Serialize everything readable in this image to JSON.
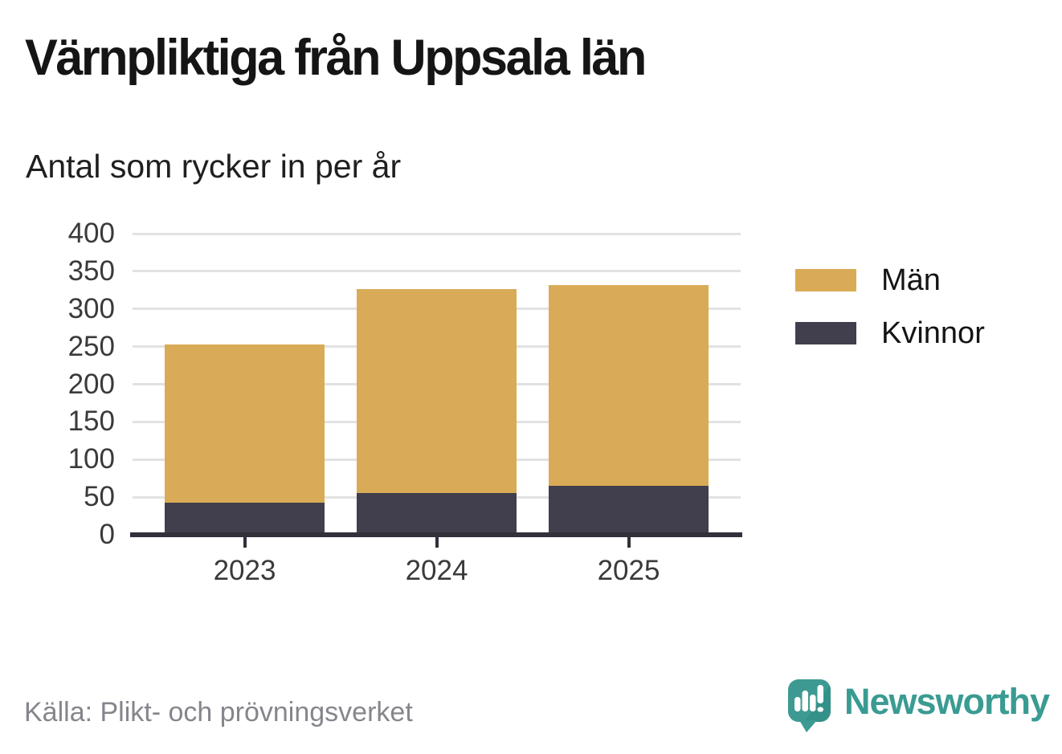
{
  "title": "Värnpliktiga från Uppsala län",
  "subtitle": "Antal som rycker in per år",
  "source": "Källa: Plikt- och prövningsverket",
  "brand": {
    "name": "Newsworthy",
    "color": "#3a9b93",
    "icon": "speech-bubble-bar-chart-icon"
  },
  "colors": {
    "man": "#d9ab57",
    "kvinnor": "#413f4d",
    "axis": "#332f3b",
    "grid": "#e2e2e2",
    "tick_label": "#3a3a3c",
    "legend_label": "#141414",
    "source_text": "#85858d"
  },
  "legend": {
    "items": [
      "Män",
      "Kvinnor"
    ]
  },
  "chart_data": {
    "type": "bar",
    "stacked": true,
    "title": "Värnpliktiga från Uppsala län",
    "subtitle": "Antal som rycker in per år",
    "categories": [
      "2023",
      "2024",
      "2025"
    ],
    "series": [
      {
        "name": "Män",
        "color": "#d9ab57",
        "values": [
          210,
          270,
          267
        ]
      },
      {
        "name": "Kvinnor",
        "color": "#413f4d",
        "values": [
          43,
          56,
          65
        ]
      }
    ],
    "stack_order": [
      "Kvinnor",
      "Män"
    ],
    "totals": [
      253,
      326,
      332
    ],
    "xlabel": "",
    "ylabel": "",
    "ylim": [
      0,
      400
    ],
    "ytick_step": 50,
    "grid": true,
    "legend_position": "right"
  }
}
